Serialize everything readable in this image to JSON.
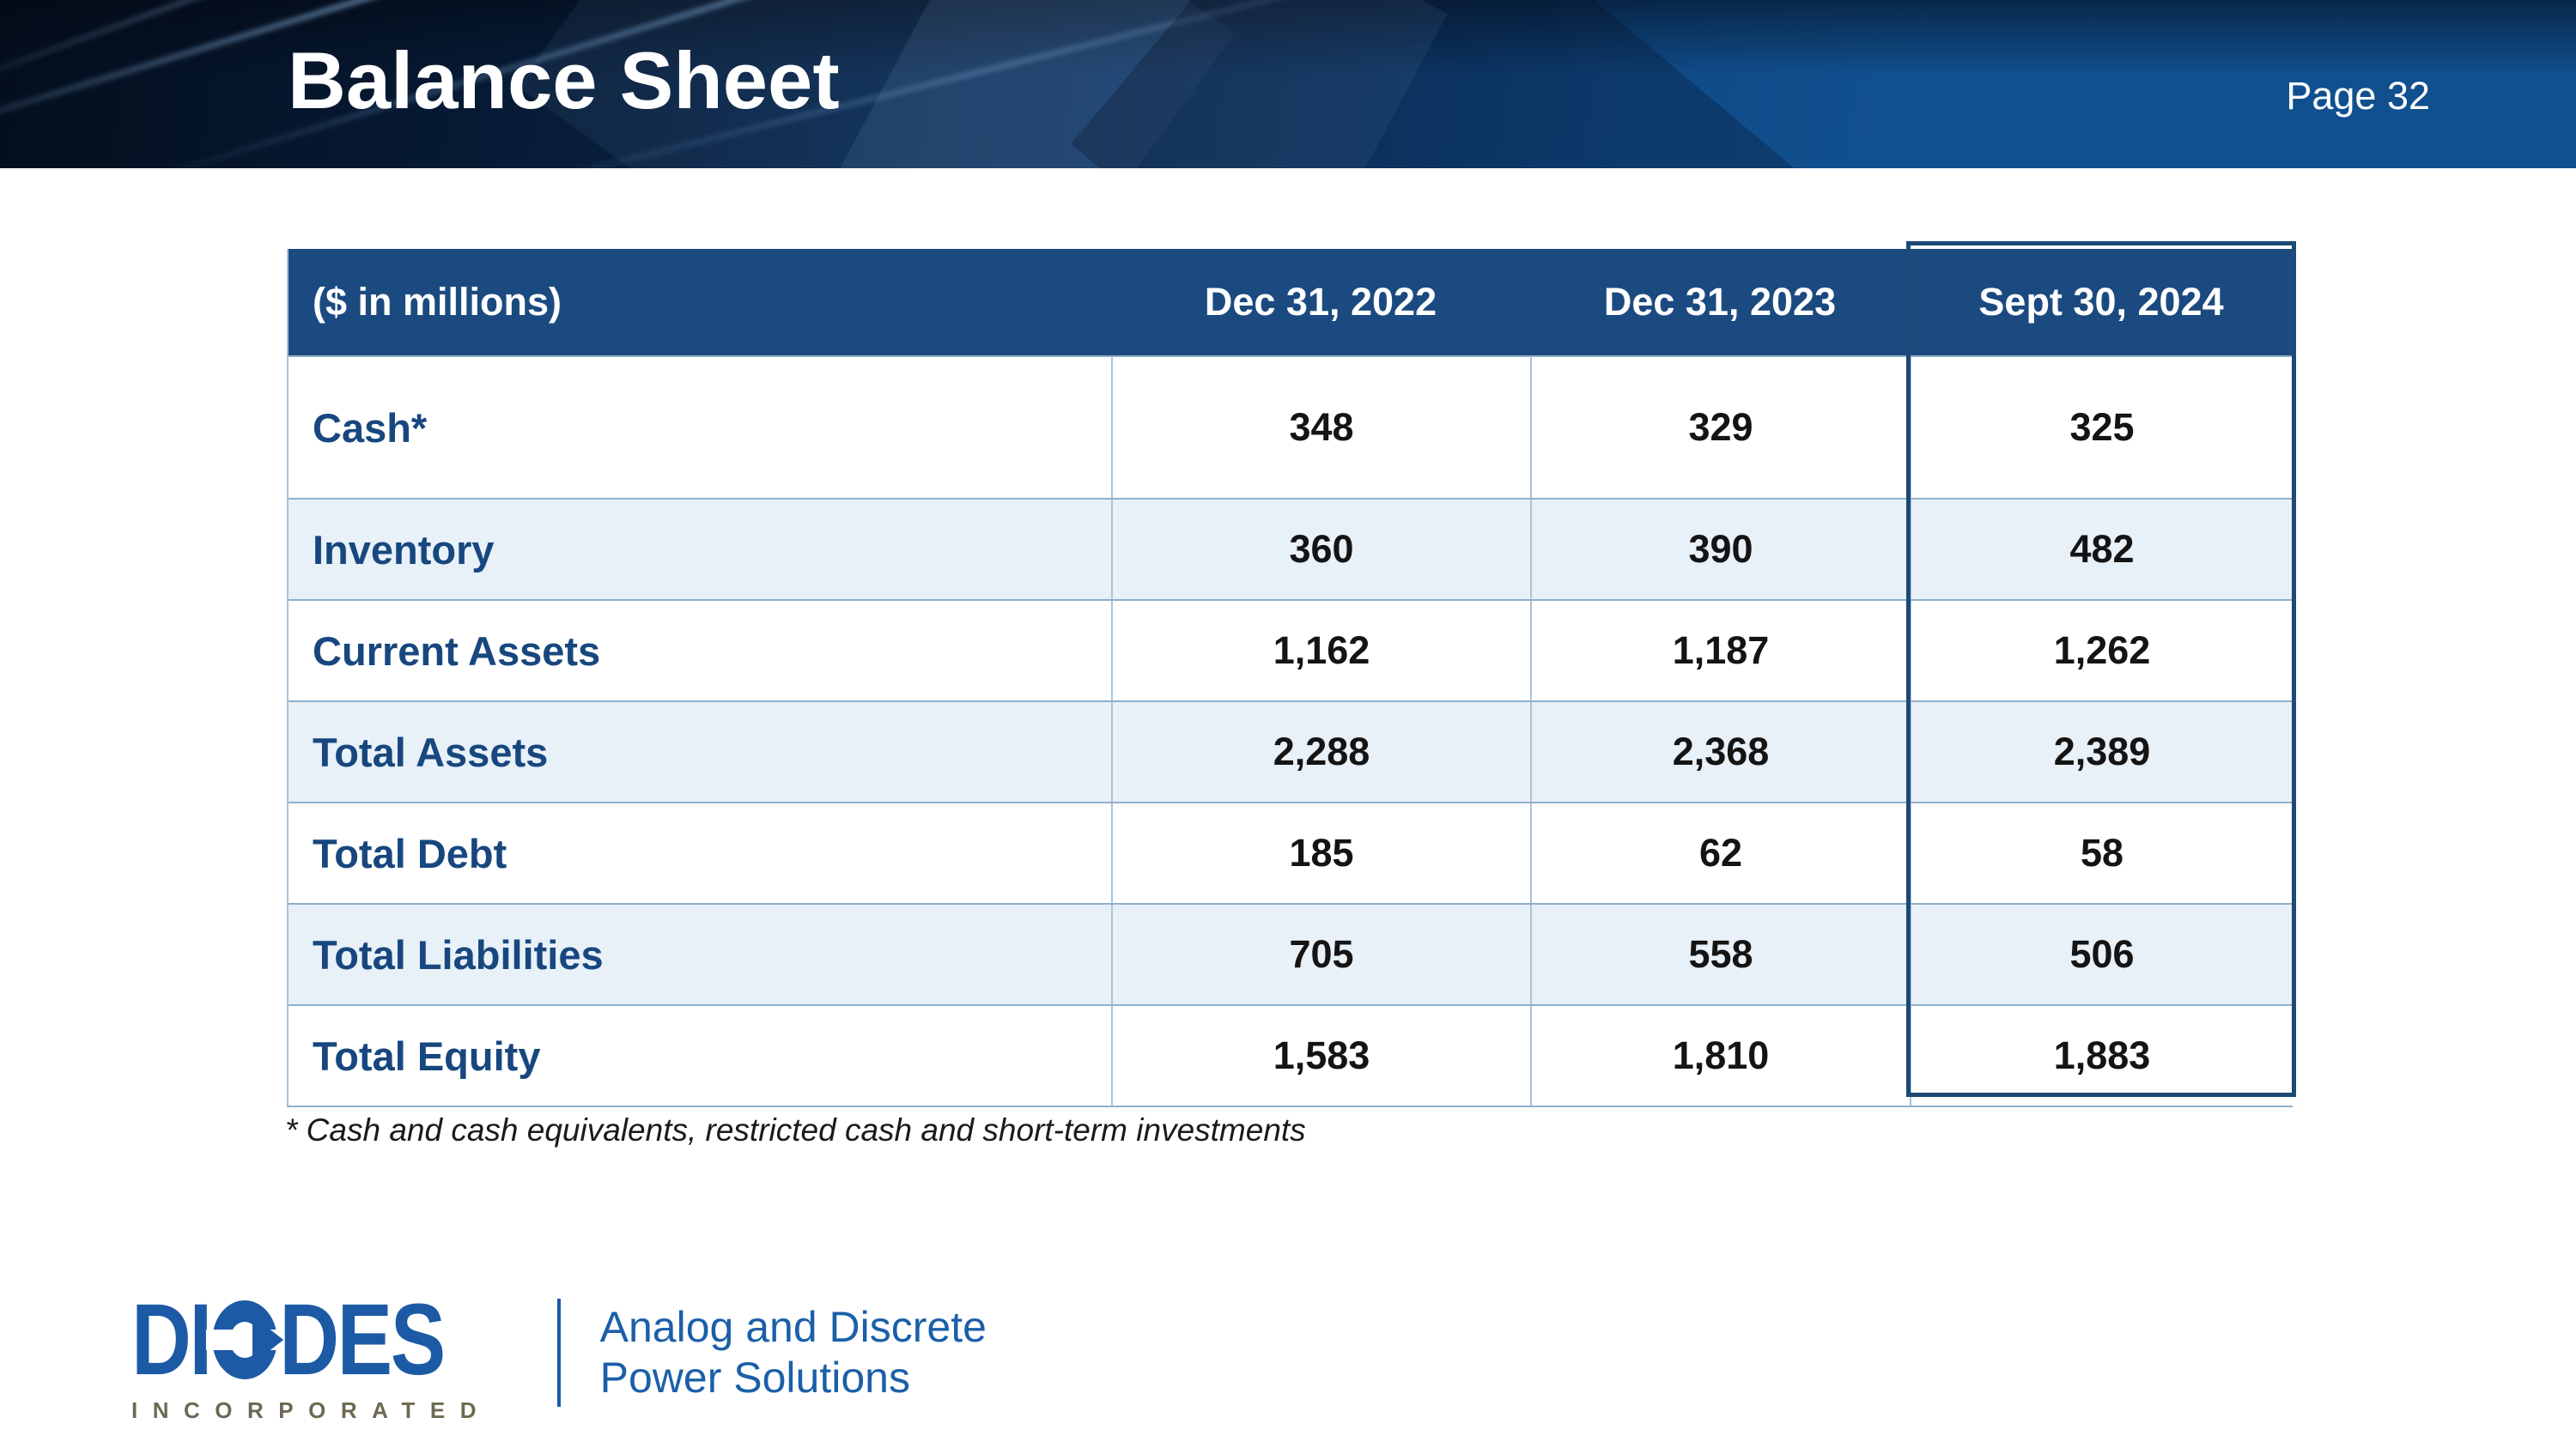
{
  "slide": {
    "title": "Balance Sheet",
    "page_label": "Page 32",
    "footnote": "* Cash and cash equivalents, restricted cash and short-term investments"
  },
  "table": {
    "unit_label": "($ in millions)",
    "columns": [
      "Dec 31, 2022",
      "Dec 31, 2023",
      "Sept 30, 2024"
    ],
    "highlighted_column": "Sept 30, 2024",
    "rows": [
      {
        "label": "Cash*",
        "values": [
          "348",
          "329",
          "325"
        ]
      },
      {
        "label": "Inventory",
        "values": [
          "360",
          "390",
          "482"
        ]
      },
      {
        "label": "Current Assets",
        "values": [
          "1,162",
          "1,187",
          "1,262"
        ]
      },
      {
        "label": "Total Assets",
        "values": [
          "2,288",
          "2,368",
          "2,389"
        ]
      },
      {
        "label": "Total Debt",
        "values": [
          "185",
          "62",
          "58"
        ]
      },
      {
        "label": "Total Liabilities",
        "values": [
          "705",
          "558",
          "506"
        ]
      },
      {
        "label": "Total Equity",
        "values": [
          "1,583",
          "1,810",
          "1,883"
        ]
      }
    ]
  },
  "footer": {
    "logo_left": "DI",
    "logo_right": "DES",
    "logo_full": "DIODES",
    "logo_subtext": "INCORPORATED",
    "tagline_line1": "Analog and Discrete",
    "tagline_line2": "Power Solutions"
  },
  "colors": {
    "banner_blue": "#11508f",
    "banner_dark": "#040e1d",
    "table_header_blue": "#1b4a80",
    "row_alt_blue": "#e8f0f8",
    "highlight_border": "#1d4976",
    "row_label_blue": "#17477e",
    "grid_line": "#8fafc9",
    "logo_blue": "#1c5aa5",
    "incorporated_olive": "#6d6951",
    "tagline_blue": "#1b5fa8",
    "value_text": "#141414"
  }
}
